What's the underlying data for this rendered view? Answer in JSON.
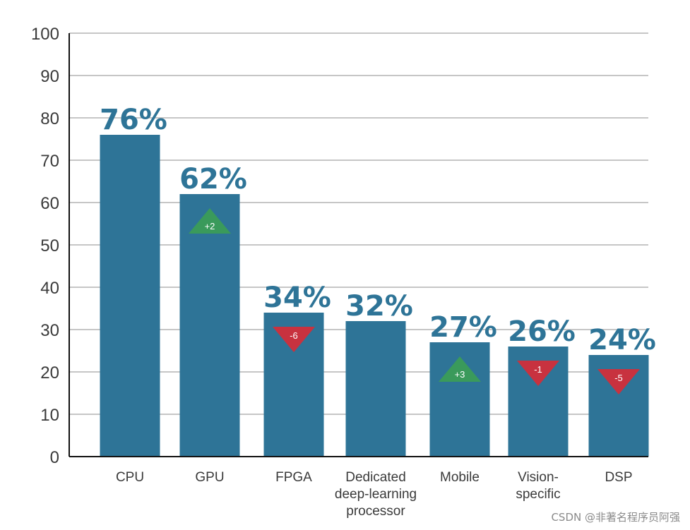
{
  "chart_data": {
    "type": "bar",
    "title": "",
    "xlabel": "",
    "ylabel": "",
    "ylim": [
      0,
      100
    ],
    "yticks": [
      0,
      10,
      20,
      30,
      40,
      50,
      60,
      70,
      80,
      90,
      100
    ],
    "grid": true,
    "categories": [
      {
        "id": "cpu",
        "lines": [
          "CPU"
        ]
      },
      {
        "id": "gpu",
        "lines": [
          "GPU"
        ]
      },
      {
        "id": "fpga",
        "lines": [
          "FPGA"
        ]
      },
      {
        "id": "dedicated",
        "lines": [
          "Dedicated",
          "deep-learning",
          "processor"
        ]
      },
      {
        "id": "mobile",
        "lines": [
          "Mobile"
        ]
      },
      {
        "id": "vision",
        "lines": [
          "Vision-",
          "specific"
        ]
      },
      {
        "id": "dsp",
        "lines": [
          "DSP"
        ]
      }
    ],
    "values": [
      76,
      62,
      34,
      32,
      27,
      26,
      24
    ],
    "value_labels": [
      "76%",
      "62%",
      "34%",
      "32%",
      "27%",
      "26%",
      "24%"
    ],
    "changes": [
      null,
      2,
      -6,
      null,
      3,
      -1,
      -5
    ],
    "change_labels": [
      null,
      "+2",
      "-6",
      null,
      "+3",
      "-1",
      "-5"
    ],
    "colors": {
      "bar": "#2e7497",
      "value_label": "#2e7497",
      "up": "#3a9a5b",
      "down": "#c8323f",
      "grid": "#b4b4b4",
      "axis": "#111111"
    }
  },
  "watermark": "CSDN @非著名程序员阿强"
}
